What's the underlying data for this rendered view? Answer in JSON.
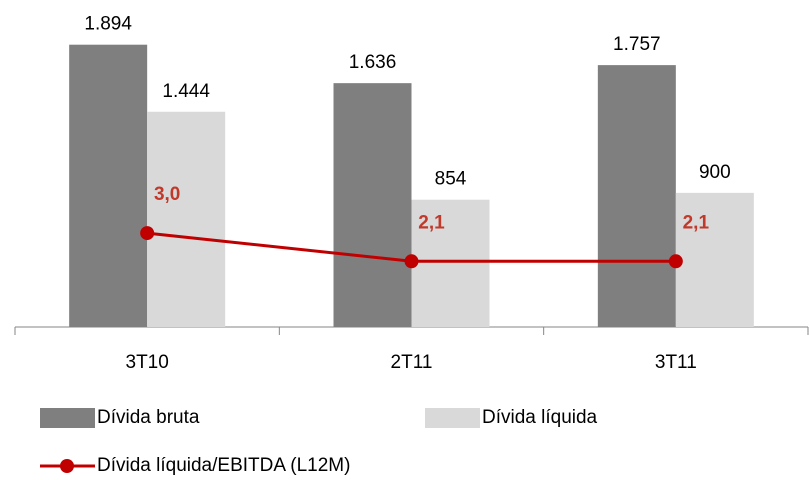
{
  "chart_data": {
    "type": "bar",
    "categories": [
      "3T10",
      "2T11",
      "3T11"
    ],
    "series": [
      {
        "name": "Dívida bruta",
        "color": "#7f7f7f",
        "values": [
          1894,
          1636,
          1757
        ],
        "value_labels": [
          "1.894",
          "1.636",
          "1.757"
        ]
      },
      {
        "name": "Dívida líquida",
        "color": "#d9d9d9",
        "values": [
          1444,
          854,
          900
        ],
        "value_labels": [
          "1.444",
          "854",
          "900"
        ]
      },
      {
        "name": "Dívida líquida/EBITDA (L12M)",
        "type": "line",
        "axis": "y2",
        "color": "#c00000",
        "values": [
          3.0,
          2.1,
          2.1
        ],
        "value_labels": [
          "3,0",
          "2,1",
          "2,1"
        ]
      }
    ],
    "ylim": [
      0,
      2100
    ],
    "y2lim": [
      0,
      10
    ]
  }
}
